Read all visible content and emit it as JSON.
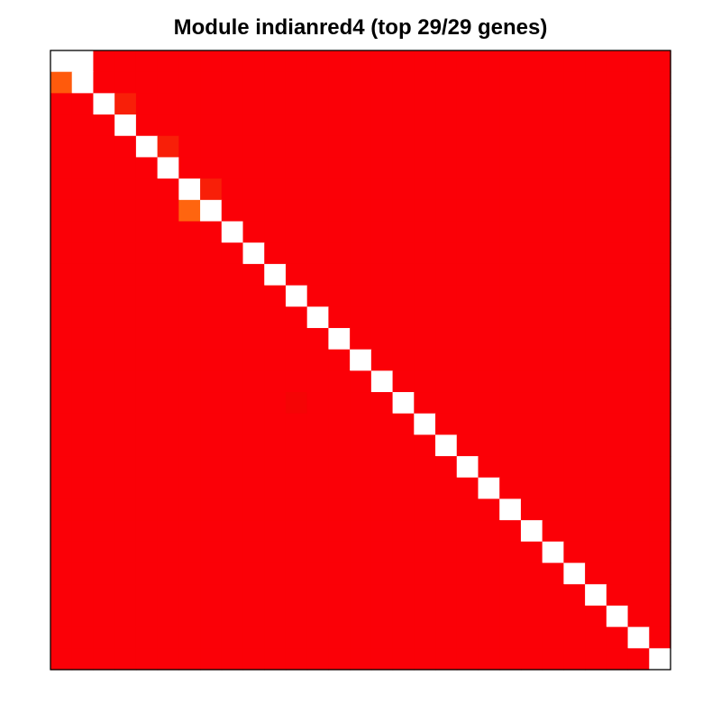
{
  "chart_data": {
    "type": "heatmap",
    "title": "Module indianred4 (top 29/29 genes)",
    "rows": 29,
    "cols": 29,
    "scale": "0 = white, 1 = red",
    "colors": {
      "background": "#ffffff",
      "diagonal": "#ffffff",
      "base": "#fb0007",
      "border": "#000000"
    },
    "base_value": 1.0,
    "diagonal_value": 0.0,
    "cells": [
      {
        "row": 0,
        "col": 1,
        "value": 0.0,
        "color": "#ffffff"
      },
      {
        "row": 1,
        "col": 0,
        "value": 0.65,
        "color": "#ff5a0c"
      },
      {
        "row": 2,
        "col": 3,
        "value": 0.85,
        "color": "#f81f08"
      },
      {
        "row": 4,
        "col": 5,
        "value": 0.85,
        "color": "#f81f08"
      },
      {
        "row": 6,
        "col": 7,
        "value": 0.85,
        "color": "#f81f08"
      },
      {
        "row": 7,
        "col": 6,
        "value": 0.6,
        "color": "#ff650f"
      },
      {
        "row": 16,
        "col": 11,
        "value": 0.97,
        "color": "#f50405"
      }
    ]
  }
}
